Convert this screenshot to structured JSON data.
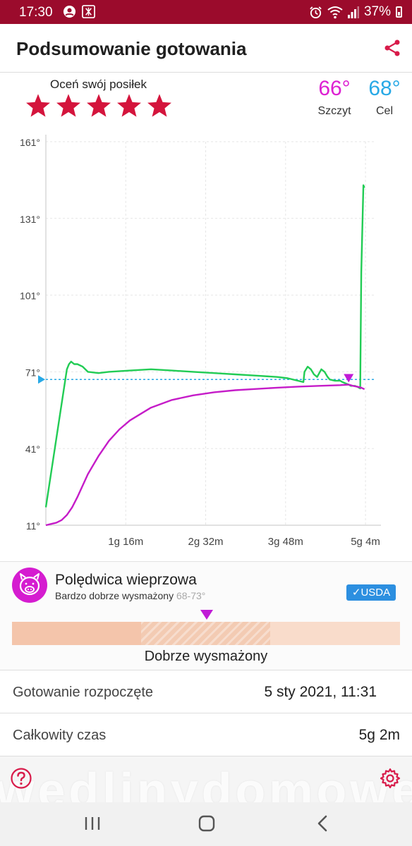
{
  "status_bar": {
    "time": "17:30",
    "battery": "37%",
    "left_icons": [
      "account-circle-icon",
      "app-notification-icon"
    ],
    "right_icons": [
      "alarm-icon",
      "wifi-icon",
      "signal-icon",
      "battery-icon"
    ]
  },
  "header": {
    "title": "Podsumowanie gotowania",
    "share_icon": "share-icon"
  },
  "rating": {
    "label": "Oceń swój posiłek",
    "stars_filled": 5,
    "stars_total": 5,
    "star_color": "#d4143c"
  },
  "temps": {
    "peak": {
      "value": "66°",
      "label": "Szczyt",
      "color": "#dd20d2"
    },
    "target": {
      "value": "68°",
      "label": "Cel",
      "color": "#28a9e6"
    }
  },
  "chart_data": {
    "type": "line",
    "y_tick_labels": [
      "161°",
      "131°",
      "101°",
      "71°",
      "41°",
      "11°"
    ],
    "y_ticks": [
      161,
      131,
      101,
      71,
      41,
      11
    ],
    "x_tick_labels": [
      "1g 16m",
      "2g 32m",
      "3g 48m",
      "5g 4m"
    ],
    "x_ticks_min": [
      76,
      152,
      228,
      304
    ],
    "ylim": [
      11,
      161
    ],
    "xlim_min": [
      0,
      312
    ],
    "grid": true,
    "target_line": {
      "value": 68,
      "color": "#28a9e6"
    },
    "peak_marker": {
      "x_min": 288,
      "value": 66,
      "color": "#c01bd6"
    },
    "series": [
      {
        "color": "#22cc55",
        "x_min": [
          0,
          10,
          20,
          22,
          24,
          27,
          30,
          35,
          40,
          50,
          60,
          80,
          100,
          120,
          140,
          160,
          180,
          200,
          220,
          230,
          245,
          246,
          249,
          252,
          255,
          258,
          262,
          265,
          268,
          270,
          275,
          280,
          282,
          285,
          288,
          290,
          294,
          297,
          299,
          300,
          302,
          303
        ],
        "values": [
          18,
          45,
          72,
          74,
          75,
          74,
          74,
          73,
          71,
          70.5,
          71,
          71.5,
          72,
          71.5,
          71,
          70.5,
          70,
          69.5,
          69,
          68.5,
          67,
          71,
          73,
          72,
          70,
          69,
          72,
          71,
          69,
          68,
          67.5,
          67.5,
          67,
          66.5,
          66,
          65.5,
          65.5,
          65,
          64.5,
          110,
          144,
          143
        ]
      },
      {
        "color": "#c51cc8",
        "x_min": [
          0,
          5,
          10,
          15,
          20,
          25,
          30,
          40,
          50,
          60,
          70,
          80,
          100,
          120,
          140,
          160,
          180,
          200,
          220,
          240,
          260,
          280,
          288,
          292,
          296,
          300,
          303
        ],
        "values": [
          11,
          11.5,
          12,
          13,
          15,
          18,
          22,
          31,
          38,
          44,
          48.5,
          52,
          57,
          60,
          61.8,
          63,
          63.8,
          64.3,
          64.8,
          65.2,
          65.5,
          65.8,
          66,
          65.5,
          65.2,
          64.8,
          64.2
        ]
      }
    ]
  },
  "meat": {
    "icon": "pig-icon",
    "name": "Polędwica wieprzowa",
    "doneness_text": "Bardzo dobrze wysmażony",
    "range": "68-73°",
    "usda_label": "USDA",
    "doneness_fill": 0.5,
    "doneness_label": "Dobrze wysmażony"
  },
  "info": {
    "started_label": "Gotowanie rozpoczęte",
    "started_value": "5 sty 2021, 11:31",
    "total_label": "Całkowity czas",
    "total_value": "5g 2m"
  },
  "footer": {
    "watermark": "wedlinydomowe.p",
    "help_icon": "help-icon",
    "settings_icon": "settings-icon"
  },
  "nav": {
    "recents_icon": "recents-icon",
    "home_icon": "home-icon",
    "back_icon": "back-icon"
  }
}
